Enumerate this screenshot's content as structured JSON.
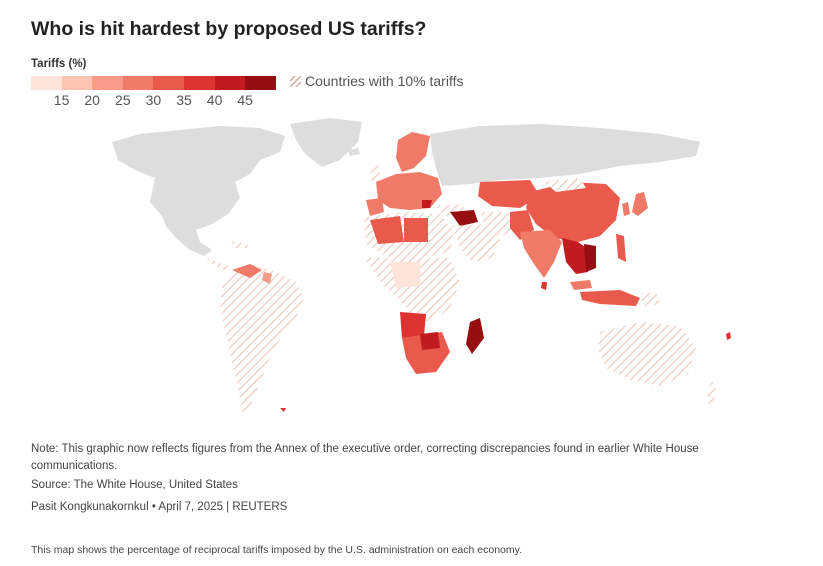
{
  "title": "Who is hit hardest by proposed US tariffs?",
  "legend": {
    "title": "Tariffs (%)",
    "colors": [
      "#fde3d8",
      "#fcc3b0",
      "#f79b88",
      "#f07a68",
      "#e95a4d",
      "#de3330",
      "#c11b20",
      "#960e12"
    ],
    "ticks": [
      "15",
      "20",
      "25",
      "30",
      "35",
      "40",
      "45"
    ],
    "hatch_label": "Countries with 10% tariffs",
    "hatch_color": "#e9c8bd"
  },
  "map": {
    "no_data_color": "#dddddd",
    "ocean": "#ffffff"
  },
  "footer": {
    "note": "Note: This graphic now reflects figures from the Annex of the executive order, correcting discrepancies found in earlier White House communications.",
    "source": "Source: The White House, United States",
    "byline": "Pasit Kongkunakornkul • April 7, 2025 | REUTERS",
    "caption": "This map shows the percentage of reciprocal tariffs imposed by the U.S. administration on each economy."
  }
}
